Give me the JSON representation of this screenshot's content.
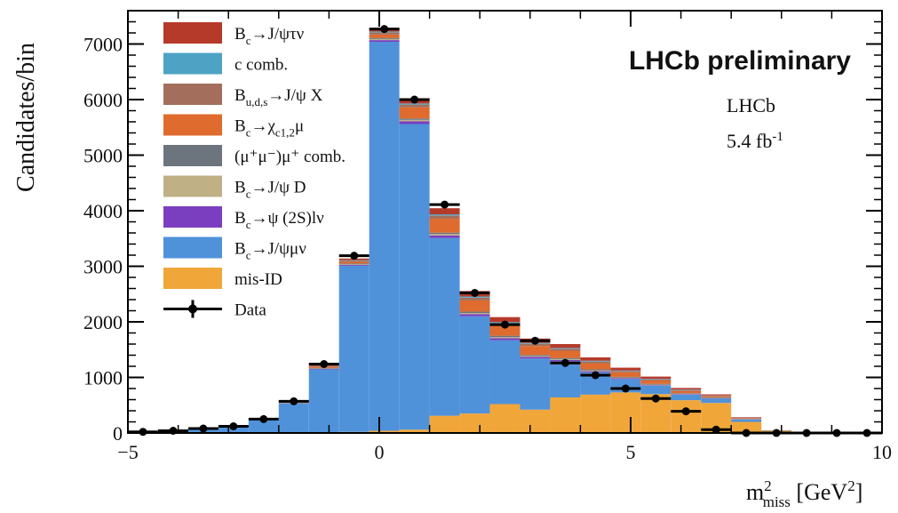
{
  "chart_data": {
    "type": "stacked-histogram",
    "title": "LHCb preliminary",
    "annotations": {
      "experiment": "LHCb",
      "luminosity": "5.4 fb⁻¹"
    },
    "xlabel": "m²_miss [GeV²]",
    "ylabel": "Candidates/bin",
    "xlim": [
      -5,
      10
    ],
    "ylim": [
      0,
      7600
    ],
    "x_ticks": [
      "−5",
      "0",
      "5",
      "10"
    ],
    "y_ticks": [
      "0",
      "1000",
      "2000",
      "3000",
      "4000",
      "5000",
      "6000",
      "7000"
    ],
    "legend_position": "top-left",
    "bin_edges": [
      -5,
      -4.4,
      -3.8,
      -3.2,
      -2.6,
      -2.0,
      -1.4,
      -0.8,
      -0.2,
      0.4,
      1.0,
      1.6,
      2.2,
      2.8,
      3.4,
      4.0,
      4.6,
      5.2,
      5.8,
      6.4,
      7.0,
      7.6,
      8.2,
      8.8,
      9.4,
      10.0
    ],
    "series": [
      {
        "name": "mis-ID",
        "color": "#f1a63a",
        "values": [
          0,
          0,
          0,
          0,
          5,
          10,
          15,
          20,
          40,
          60,
          310,
          350,
          520,
          420,
          640,
          690,
          730,
          700,
          590,
          540,
          200,
          40,
          10,
          5,
          0
        ]
      },
      {
        "name": "Bc→J/ψμν",
        "color": "#5092da",
        "values": [
          20,
          40,
          80,
          110,
          240,
          520,
          1130,
          2990,
          7000,
          5500,
          3200,
          1750,
          1150,
          920,
          650,
          400,
          240,
          150,
          100,
          80,
          40,
          5,
          0,
          0,
          0
        ]
      },
      {
        "name": "Bc→ψ(2S)lν",
        "color": "#7a3fbf",
        "values": [
          0,
          0,
          0,
          0,
          0,
          5,
          10,
          15,
          30,
          50,
          45,
          40,
          35,
          30,
          25,
          20,
          15,
          10,
          10,
          5,
          5,
          0,
          0,
          0,
          0
        ]
      },
      {
        "name": "Bc→J/ψD",
        "color": "#bfb086",
        "values": [
          0,
          0,
          0,
          0,
          0,
          5,
          5,
          10,
          20,
          25,
          25,
          20,
          20,
          15,
          15,
          15,
          10,
          10,
          5,
          5,
          5,
          0,
          0,
          0,
          0
        ]
      },
      {
        "name": "(μ⁺μ⁻)μ⁺ comb.",
        "color": "#6c757e",
        "values": [
          0,
          0,
          0,
          0,
          0,
          5,
          10,
          15,
          20,
          25,
          25,
          25,
          25,
          20,
          20,
          20,
          15,
          15,
          10,
          10,
          5,
          5,
          0,
          0,
          0
        ]
      },
      {
        "name": "Bc→χc1,2μ",
        "color": "#e06b2e",
        "values": [
          0,
          0,
          0,
          0,
          0,
          10,
          20,
          30,
          60,
          200,
          250,
          200,
          180,
          160,
          130,
          110,
          80,
          60,
          40,
          20,
          10,
          0,
          0,
          0,
          0
        ]
      },
      {
        "name": "Bu,d,s→J/ψX",
        "color": "#a36f5c",
        "values": [
          0,
          0,
          0,
          0,
          0,
          5,
          10,
          20,
          40,
          50,
          60,
          50,
          45,
          40,
          35,
          30,
          25,
          20,
          15,
          10,
          5,
          0,
          0,
          0,
          0
        ]
      },
      {
        "name": "c comb.",
        "color": "#4ea3c4",
        "values": [
          0,
          0,
          0,
          0,
          0,
          5,
          5,
          10,
          15,
          20,
          20,
          20,
          20,
          15,
          15,
          15,
          10,
          10,
          10,
          5,
          5,
          0,
          0,
          0,
          0
        ]
      },
      {
        "name": "Bc→J/ψτν",
        "color": "#b63a2a",
        "values": [
          0,
          0,
          0,
          0,
          0,
          10,
          20,
          30,
          50,
          70,
          110,
          100,
          90,
          80,
          70,
          60,
          50,
          40,
          30,
          20,
          10,
          0,
          0,
          0,
          0
        ]
      }
    ],
    "data": {
      "name": "Data",
      "values": [
        20,
        40,
        80,
        120,
        250,
        570,
        1240,
        3190,
        7270,
        6000,
        4110,
        2520,
        1950,
        1660,
        1260,
        1040,
        800,
        620,
        390,
        60,
        0,
        0,
        0,
        0,
        0
      ]
    }
  },
  "legend": [
    {
      "main": "B",
      "sub": "c",
      "rest": "→J/ψτν",
      "sup": ""
    },
    {
      "main": "c comb.",
      "sub": "",
      "rest": "",
      "sup": ""
    },
    {
      "main": "B",
      "sub": "u,d,s",
      "rest": "→J/ψ X",
      "sup": ""
    },
    {
      "main": "B",
      "sub": "c",
      "rest": "→χ",
      "sub2": "c1,2",
      "rest2": "μ"
    },
    {
      "main": "(μ⁺μ⁻)μ⁺ comb.",
      "sub": "",
      "rest": "",
      "sup": ""
    },
    {
      "main": "B",
      "sub": "c",
      "rest": "→J/ψ D",
      "sup": ""
    },
    {
      "main": "B",
      "sub": "c",
      "rest": "→ψ (2S)lν",
      "sup": ""
    },
    {
      "main": "B",
      "sub": "c",
      "rest": "→J/ψμν",
      "sup": ""
    },
    {
      "main": "mis-ID",
      "sub": "",
      "rest": "",
      "sup": ""
    },
    {
      "main": "Data",
      "sub": "",
      "rest": "",
      "sup": ""
    }
  ],
  "legend_colors": [
    "#b63a2a",
    "#4ea3c4",
    "#a36f5c",
    "#e06b2e",
    "#6c757e",
    "#bfb086",
    "#7a3fbf",
    "#5092da",
    "#f1a63a"
  ]
}
